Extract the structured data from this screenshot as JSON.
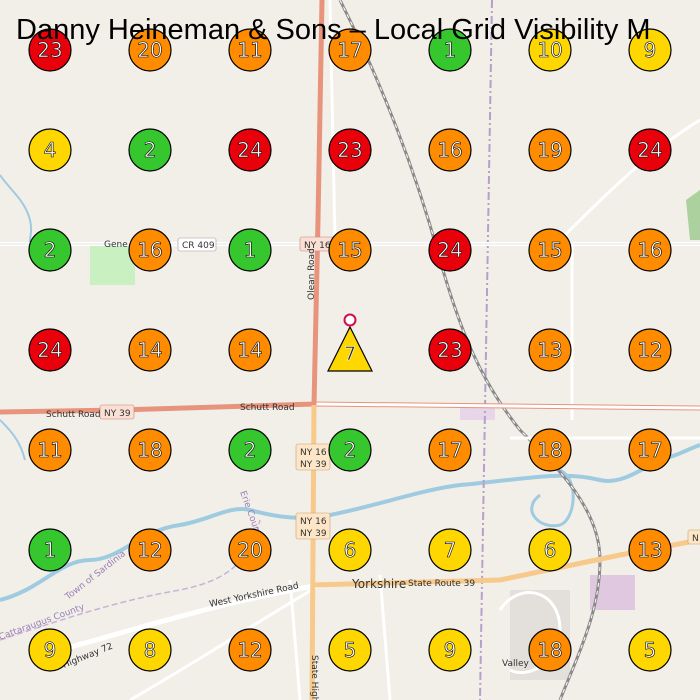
{
  "title": "Danny Heineman & Sons – Local Grid Visibility M",
  "colors": {
    "background": "#f2efe9",
    "red": "#e8000b",
    "orange": "#ff8c00",
    "yellow": "#ffd700",
    "green": "#35c72d",
    "road_primary": "#e8937c",
    "road_secondary": "#f7c98b",
    "road_minor": "#ffffff",
    "water": "#aad3df",
    "park": "#c8f0c0",
    "rail": "#777777"
  },
  "center_marker": {
    "rank": "7",
    "color": "#ffd700",
    "pin": "location-pin-icon"
  },
  "grid": {
    "rows": [
      [
        "23",
        "20",
        "11",
        "17",
        "1",
        "10",
        "9"
      ],
      [
        "4",
        "2",
        "24",
        "23",
        "16",
        "19",
        "24"
      ],
      [
        "2",
        "16",
        "1",
        "15",
        "24",
        "15",
        "16"
      ],
      [
        "24",
        "14",
        "14",
        "",
        "23",
        "13",
        "12"
      ],
      [
        "11",
        "18",
        "2",
        "2",
        "17",
        "18",
        "17"
      ],
      [
        "1",
        "12",
        "20",
        "6",
        "7",
        "6",
        "13"
      ],
      [
        "9",
        "8",
        "12",
        "5",
        "9",
        "18",
        "5"
      ]
    ],
    "colors": [
      [
        "red",
        "orange",
        "orange",
        "orange",
        "green",
        "yellow",
        "yellow"
      ],
      [
        "yellow",
        "green",
        "red",
        "red",
        "orange",
        "orange",
        "red"
      ],
      [
        "green",
        "orange",
        "green",
        "orange",
        "red",
        "orange",
        "orange"
      ],
      [
        "red",
        "orange",
        "orange",
        "",
        "red",
        "orange",
        "orange"
      ],
      [
        "orange",
        "orange",
        "green",
        "green",
        "orange",
        "orange",
        "orange"
      ],
      [
        "green",
        "orange",
        "orange",
        "yellow",
        "yellow",
        "yellow",
        "orange"
      ],
      [
        "yellow",
        "yellow",
        "orange",
        "yellow",
        "yellow",
        "orange",
        "yellow"
      ]
    ]
  },
  "map_labels": {
    "gene": "Gene",
    "cr409": "CR 409",
    "ny16_top": "NY 16",
    "olean_road": "Olean Road",
    "schutt_road_left": "Schutt Road",
    "ny39_left": "NY 39",
    "schutt_road_mid": "Schutt Road",
    "ny16_a": "NY 16",
    "ny39_a": "NY 39",
    "ny16_b": "NY 16",
    "ny39_b": "NY 39",
    "erie_county": "Erie County",
    "town_of_sardinia": "Town of Sardinia",
    "west_yorkshire_road": "West Yorkshire Road",
    "yorkshire": "Yorkshire",
    "state_route_39": "State Route 39",
    "highway_72": "Highway 72",
    "cattaraugus_county": "Cattaraugus County",
    "state_highway": "State Highw",
    "arcade_valley": "Valley",
    "ny_right": "N"
  }
}
